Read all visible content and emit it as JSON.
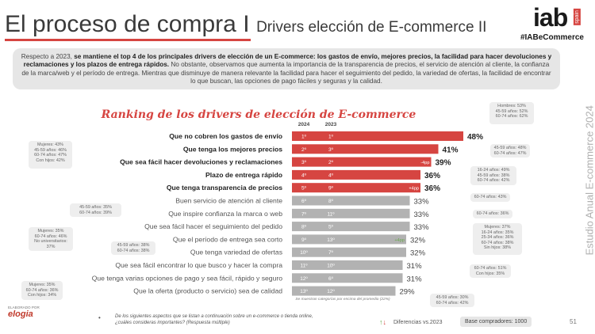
{
  "header": {
    "title_main": "El proceso de compra",
    "separator": "I",
    "title_sub": "Drivers elección de E-commerce II",
    "logo_text": "iab",
    "logo_badge": "spain",
    "hashtag": "#IABeCommerce"
  },
  "intro": {
    "lead": "Respecto a 2023, ",
    "bold": "se mantiene el top 4 de los principales drivers de elección de un E-commerce: los gastos de envío, mejores precios, la facilidad para hacer devoluciones y reclamaciones y los plazos de entrega rápidos.",
    "rest": " No obstante, observamos que aumenta la importancia de la transparencia de precios, el servicio de atención al cliente, la confianza de la marca/web y el período de entrega. Mientras que disminuye de manera relevante la facilidad para hacer el seguimiento del pedido, la variedad de ofertas, la facilidad de encontrar lo que buscan, las opciones de pago fáciles y seguras y la calidad."
  },
  "side_label": "Estudio Anual E-commerce 2024",
  "chart_data": {
    "type": "bar",
    "title": "Ranking de los drivers de elección de E-commerce",
    "col_2024": "2024",
    "col_2023": "2023",
    "xlim": [
      0,
      50
    ],
    "categories": [
      "Que no cobren los gastos de envío",
      "Que tenga los mejores precios",
      "Que sea fácil hacer devoluciones y reclamaciones",
      "Plazo de entrega rápido",
      "Que tenga transparencia de precios",
      "Buen servicio de atención al cliente",
      "Que inspire confianza la marca o web",
      "Que sea fácil hacer el seguimiento del pedido",
      "Que el período de entrega sea corto",
      "Que tenga variedad de ofertas",
      "Que sea fácil encontrar lo que busco y hacer la compra",
      "Que tenga varias opciones de pago y sea fácil, rápido y seguro",
      "Que la oferta (producto o servicio) sea de calidad"
    ],
    "values": [
      48,
      41,
      39,
      36,
      36,
      33,
      33,
      33,
      32,
      32,
      31,
      31,
      29
    ],
    "value_labels": [
      "48%",
      "41%",
      "39%",
      "36%",
      "36%",
      "33%",
      "33%",
      "33%",
      "32%",
      "32%",
      "31%",
      "31%",
      "29%"
    ],
    "rank_2024": [
      "1º",
      "2º",
      "3º",
      "4º",
      "5º",
      "6º",
      "7º",
      "8º",
      "9º",
      "10º",
      "11º",
      "12º",
      "13º"
    ],
    "rank_2023": [
      "1º",
      "3º",
      "2º",
      "4º",
      "9º",
      "8º",
      "11º",
      "5º",
      "13º",
      "7º",
      "10º",
      "6º",
      "12º"
    ],
    "change_labels": [
      "",
      "",
      "-4pp",
      "",
      "+4pp",
      "",
      "",
      "",
      "+4pp",
      "",
      "",
      "",
      ""
    ],
    "highlight_count": 5,
    "colors": {
      "highlight": "#d64541",
      "normal": "#b2b2b2",
      "up": "#6aa84f",
      "down": "#d64541"
    },
    "note": "Se muestran categorías por encima del promedio (22%)"
  },
  "callouts": [
    "Hombres: 53%\n45-59 años: 52%\n60-74 años: 62%",
    "45-59 años: 48%\n60-74 años: 47%",
    "Mujeres: 43%\n45-59 años: 46%\n60-74 años: 47%\nCon hijos: 42%",
    "16-24 años: 49%\n45-59 años: 38%\n60-74 años: 42%",
    "60-74 años: 43%",
    "45-59 años: 35%\n60-74 años: 39%",
    "60-74 años: 36%",
    "Mujeres: 35%\n60-74 años: 46%\nNo universitarios: 37%",
    "Mujeres: 37%\n16-24 años: 35%\n25-34 años: 36%\n60-74 años: 38%\nSin hijos: 38%",
    "45-59 años: 38%\n60-74 años: 38%",
    "60-74 años: 51%\nCon hijos: 35%",
    "Mujeres: 35%\n60-74 años: 36%\nCon hijos: 34%",
    "45-59 años: 30%\n60-74 años: 42%"
  ],
  "footer": {
    "elaborado": "ELABORADO POR",
    "brand": "elogia",
    "bullet": "•",
    "question": "De los siguientes aspectos que se listan a continuación sobre un e-commerce o tienda online, ¿cuáles consideras importantes? (Respuesta múltiple)",
    "legend_arrows": "↑↓",
    "legend": "Diferencias vs.2023",
    "base": "Base compradores: 1000",
    "page": "51"
  }
}
